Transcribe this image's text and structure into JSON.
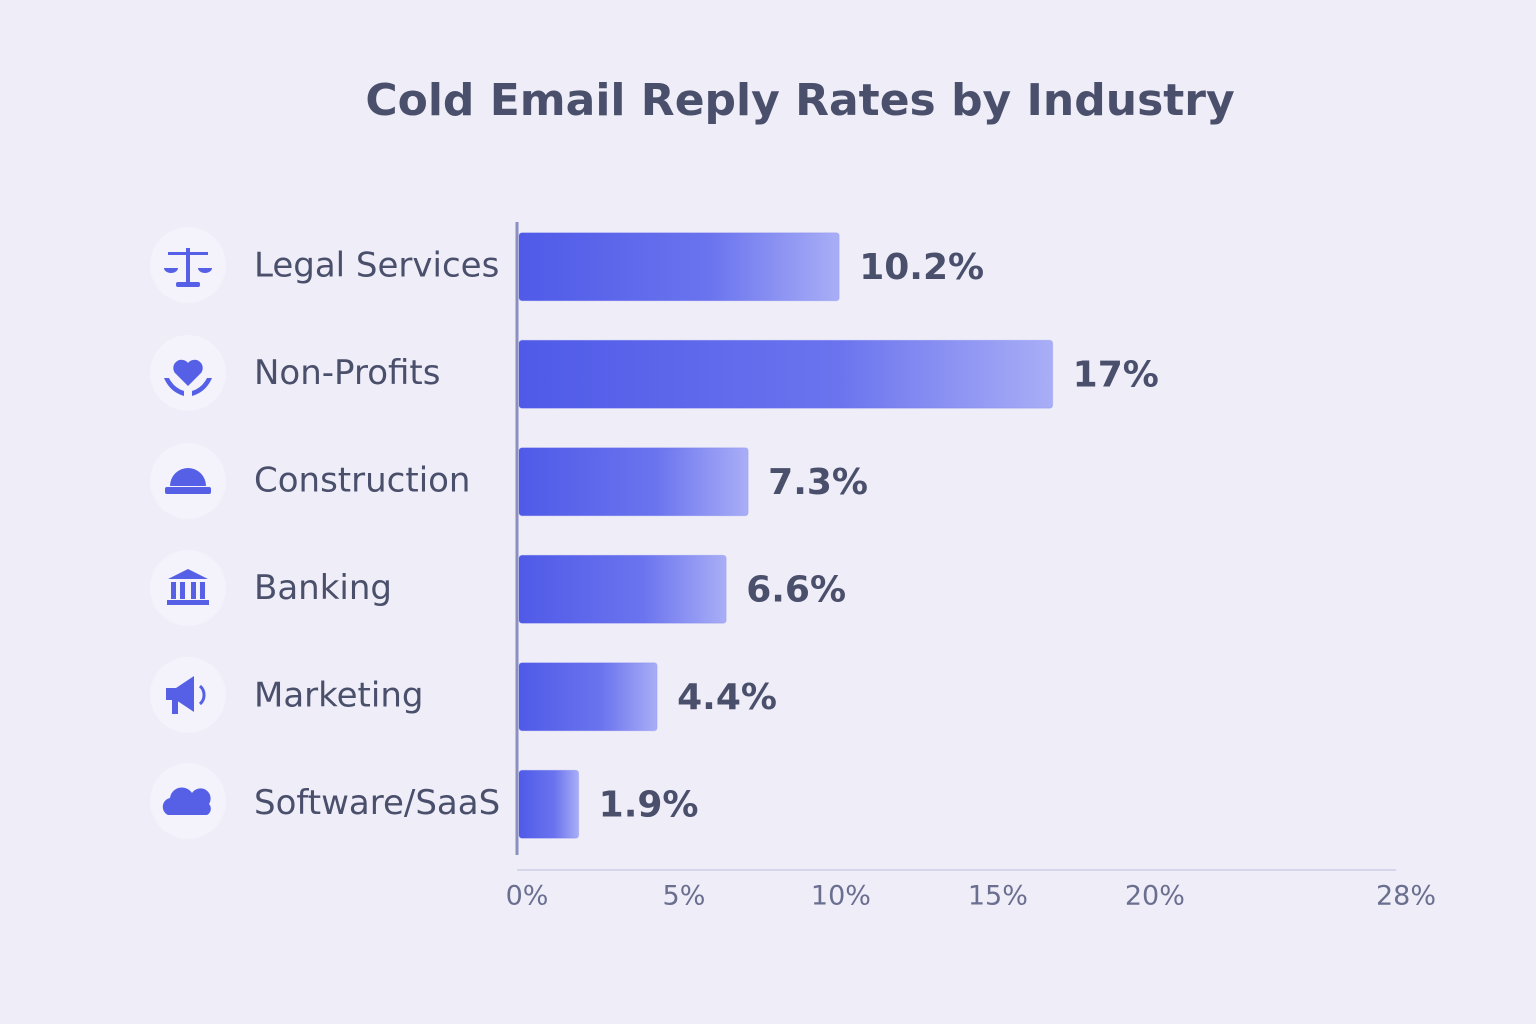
{
  "chart_data": {
    "type": "bar",
    "orientation": "horizontal",
    "title": "Cold Email Reply Rates by Industry",
    "categories": [
      "Legal Services",
      "Non-Profits",
      "Construction",
      "Banking",
      "Marketing",
      "Software/SaaS"
    ],
    "values": [
      10.2,
      17,
      7.3,
      6.6,
      4.4,
      1.9
    ],
    "value_labels": [
      "10.2%",
      "17%",
      "7.3%",
      "6.6%",
      "4.4%",
      "1.9%"
    ],
    "color": "#4f5ae8",
    "xlim": [
      0,
      28
    ],
    "xticks": [
      {
        "value": 0,
        "label": "0%"
      },
      {
        "value": 5,
        "label": "5%"
      },
      {
        "value": 10,
        "label": "10%"
      },
      {
        "value": 15,
        "label": "15%"
      },
      {
        "value": 20,
        "label": "20%"
      },
      {
        "value": 28,
        "label": "28%"
      }
    ]
  }
}
